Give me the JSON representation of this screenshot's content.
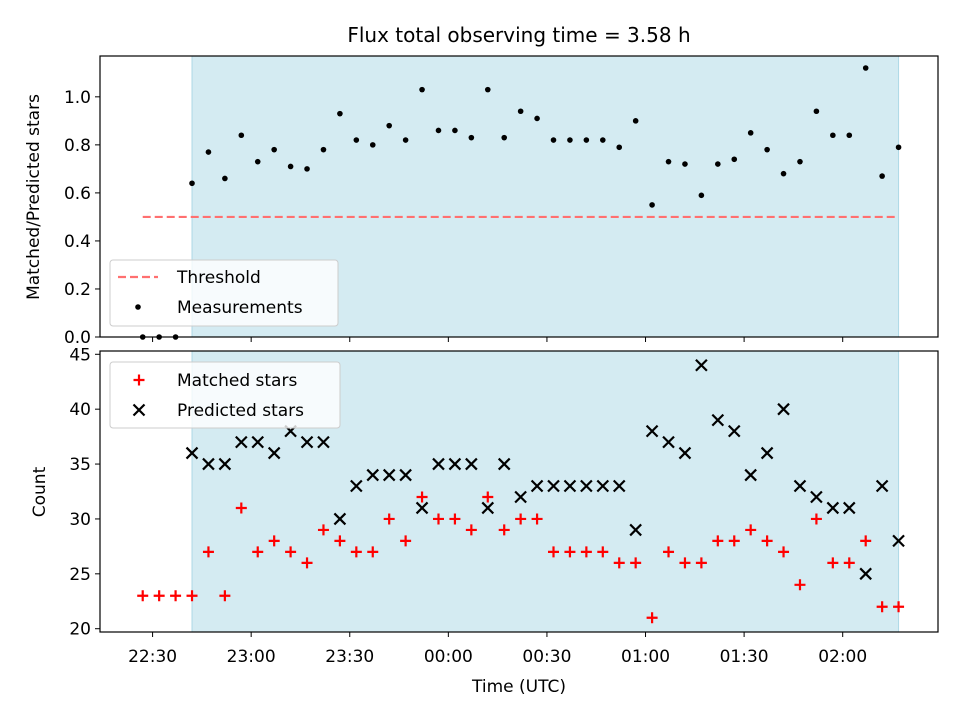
{
  "chart_data": [
    {
      "type": "scatter",
      "title": "Flux total observing time = 3.58 h",
      "xlabel": "",
      "ylabel": "Matched/Predicted stars",
      "ylim": [
        0,
        1.17
      ],
      "yticks": [
        0.0,
        0.2,
        0.4,
        0.6,
        0.8,
        1.0
      ],
      "ytick_labels": [
        "0.0",
        "0.2",
        "0.4",
        "0.6",
        "0.8",
        "1.0"
      ],
      "observing_window": [
        "22:42",
        "02:17"
      ],
      "threshold": {
        "name": "Threshold",
        "value": 0.5,
        "x_start": "22:27",
        "x_end": "02:17",
        "color": "#ff7070"
      },
      "series": [
        {
          "name": "Measurements",
          "color": "#000000",
          "x": [
            "22:27",
            "22:32",
            "22:37",
            "22:42",
            "22:47",
            "22:52",
            "22:57",
            "23:02",
            "23:07",
            "23:12",
            "23:17",
            "23:22",
            "23:27",
            "23:32",
            "23:37",
            "23:42",
            "23:47",
            "23:52",
            "23:57",
            "00:02",
            "00:07",
            "00:12",
            "00:17",
            "00:22",
            "00:27",
            "00:32",
            "00:37",
            "00:42",
            "00:47",
            "00:52",
            "00:57",
            "01:02",
            "01:07",
            "01:12",
            "01:17",
            "01:22",
            "01:27",
            "01:32",
            "01:37",
            "01:42",
            "01:47",
            "01:52",
            "01:57",
            "02:02",
            "02:07",
            "02:12",
            "02:17"
          ],
          "y": [
            0.0,
            0.0,
            0.0,
            0.64,
            0.77,
            0.66,
            0.84,
            0.73,
            0.78,
            0.71,
            0.7,
            0.78,
            0.93,
            0.82,
            0.8,
            0.88,
            0.82,
            1.03,
            0.86,
            0.86,
            0.83,
            1.03,
            0.83,
            0.94,
            0.91,
            0.82,
            0.82,
            0.82,
            0.82,
            0.79,
            0.9,
            0.55,
            0.73,
            0.72,
            0.59,
            0.72,
            0.74,
            0.85,
            0.78,
            0.68,
            0.73,
            0.94,
            0.84,
            0.84,
            1.12,
            0.67,
            0.79
          ]
        }
      ],
      "legend": {
        "position": "lower-left",
        "entries": [
          "Threshold",
          "Measurements"
        ]
      }
    },
    {
      "type": "scatter",
      "title": "",
      "xlabel": "Time (UTC)",
      "ylabel": "Count",
      "ylim": [
        19.7,
        45.3
      ],
      "yticks": [
        20,
        25,
        30,
        35,
        40,
        45
      ],
      "ytick_labels": [
        "20",
        "25",
        "30",
        "35",
        "40",
        "45"
      ],
      "xlim": [
        "22:14",
        "02:29"
      ],
      "xticks": [
        "22:30",
        "23:00",
        "23:30",
        "00:00",
        "00:30",
        "01:00",
        "01:30",
        "02:00"
      ],
      "xtick_labels": [
        "22:30",
        "23:00",
        "23:30",
        "00:00",
        "00:30",
        "01:00",
        "01:30",
        "02:00"
      ],
      "observing_window": [
        "22:42",
        "02:17"
      ],
      "series": [
        {
          "name": "Matched stars",
          "marker": "plus",
          "color": "#ff0000",
          "x": [
            "22:27",
            "22:32",
            "22:37",
            "22:42",
            "22:47",
            "22:52",
            "22:57",
            "23:02",
            "23:07",
            "23:12",
            "23:17",
            "23:22",
            "23:27",
            "23:32",
            "23:37",
            "23:42",
            "23:47",
            "23:52",
            "23:57",
            "00:02",
            "00:07",
            "00:12",
            "00:17",
            "00:22",
            "00:27",
            "00:32",
            "00:37",
            "00:42",
            "00:47",
            "00:52",
            "00:57",
            "01:02",
            "01:07",
            "01:12",
            "01:17",
            "01:22",
            "01:27",
            "01:32",
            "01:37",
            "01:42",
            "01:47",
            "01:52",
            "01:57",
            "02:02",
            "02:07",
            "02:12",
            "02:17"
          ],
          "y": [
            23,
            23,
            23,
            23,
            27,
            23,
            31,
            27,
            28,
            27,
            26,
            29,
            28,
            27,
            27,
            30,
            28,
            32,
            30,
            30,
            29,
            32,
            29,
            30,
            30,
            27,
            27,
            27,
            27,
            26,
            26,
            21,
            27,
            26,
            26,
            28,
            28,
            29,
            28,
            27,
            24,
            30,
            26,
            26,
            28,
            22,
            22
          ]
        },
        {
          "name": "Predicted stars",
          "marker": "x",
          "color": "#000000",
          "x": [
            "22:42",
            "22:47",
            "22:52",
            "22:57",
            "23:02",
            "23:07",
            "23:12",
            "23:17",
            "23:22",
            "23:27",
            "23:32",
            "23:37",
            "23:42",
            "23:47",
            "23:52",
            "23:57",
            "00:02",
            "00:07",
            "00:12",
            "00:17",
            "00:22",
            "00:27",
            "00:32",
            "00:37",
            "00:42",
            "00:47",
            "00:52",
            "00:57",
            "01:02",
            "01:07",
            "01:12",
            "01:17",
            "01:22",
            "01:27",
            "01:32",
            "01:37",
            "01:42",
            "01:47",
            "01:52",
            "01:57",
            "02:02",
            "02:07",
            "02:12",
            "02:17"
          ],
          "y": [
            36,
            35,
            35,
            37,
            37,
            36,
            38,
            37,
            37,
            30,
            33,
            34,
            34,
            34,
            31,
            35,
            35,
            35,
            31,
            35,
            32,
            33,
            33,
            33,
            33,
            33,
            33,
            29,
            38,
            37,
            36,
            44,
            39,
            38,
            34,
            36,
            40,
            33,
            32,
            31,
            31,
            25,
            33,
            28
          ]
        }
      ],
      "legend": {
        "position": "top-left",
        "entries": [
          "Matched stars",
          "Predicted stars"
        ]
      }
    }
  ]
}
